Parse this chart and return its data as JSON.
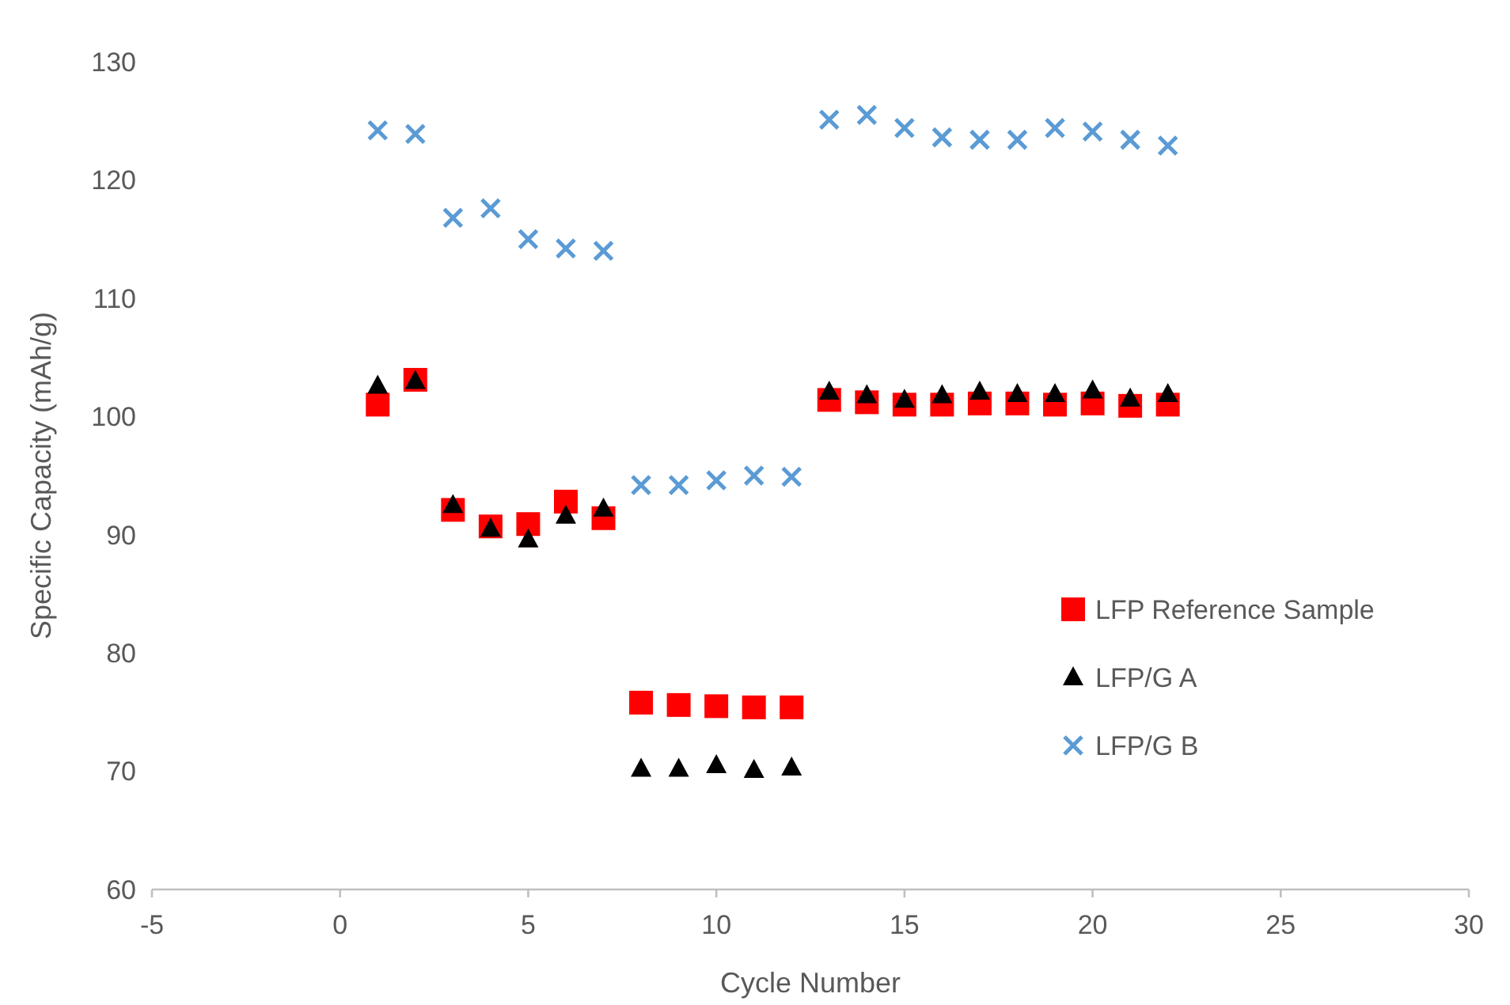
{
  "chart_data": {
    "type": "scatter",
    "xlabel": "Cycle Number",
    "ylabel": "Specific Capacity (mAh/g)",
    "xlim": [
      -5,
      30
    ],
    "xticks": [
      -5,
      0,
      5,
      10,
      15,
      20,
      25,
      30
    ],
    "ylim": [
      60,
      130
    ],
    "yticks": [
      60,
      70,
      80,
      90,
      100,
      110,
      120,
      130
    ],
    "grid": false,
    "legend": "right",
    "x": [
      1,
      2,
      3,
      4,
      5,
      6,
      7,
      8,
      9,
      10,
      11,
      12,
      13,
      14,
      15,
      16,
      17,
      18,
      19,
      20,
      21,
      22
    ],
    "series": [
      {
        "name": "LFP Reference Sample",
        "color": "#ff0000",
        "marker": "square",
        "values": [
          101.0,
          103.1,
          92.1,
          90.7,
          90.9,
          92.8,
          91.4,
          75.8,
          75.6,
          75.5,
          75.4,
          75.4,
          101.4,
          101.2,
          101.0,
          101.0,
          101.1,
          101.1,
          101.0,
          101.1,
          100.9,
          101.0
        ]
      },
      {
        "name": "LFP/G A",
        "color": "#000000",
        "marker": "triangle",
        "values": [
          102.6,
          103.0,
          92.5,
          90.5,
          89.6,
          91.6,
          92.2,
          70.2,
          70.2,
          70.5,
          70.1,
          70.3,
          102.1,
          101.8,
          101.4,
          101.8,
          102.1,
          101.9,
          101.9,
          102.2,
          101.5,
          101.9
        ]
      },
      {
        "name": "LFP/G B",
        "color": "#5b9bd5",
        "marker": "cross",
        "values": [
          124.2,
          123.9,
          116.8,
          117.6,
          115.0,
          114.2,
          114.0,
          94.2,
          94.2,
          94.6,
          95.0,
          94.9,
          125.1,
          125.5,
          124.4,
          123.6,
          123.4,
          123.4,
          124.4,
          124.1,
          123.4,
          122.9
        ]
      }
    ]
  }
}
